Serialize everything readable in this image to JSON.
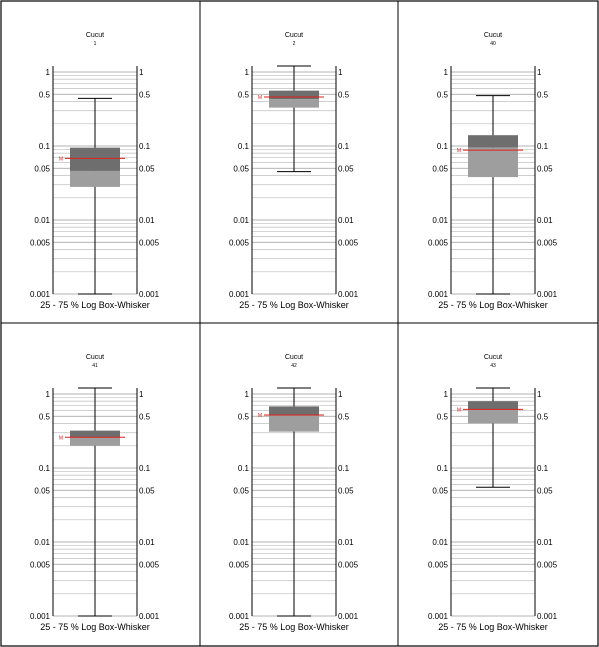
{
  "chart_data": [
    {
      "type": "boxplot",
      "title": "Cucut",
      "subtitle": "1",
      "xlabel": "25 - 75 % Log Box-Whisker",
      "yscale": "log",
      "ylim": [
        0.001,
        1
      ],
      "yticks": [
        "1",
        "0.5",
        "0.1",
        "0.05",
        "0.01",
        "0.005",
        "0.001"
      ],
      "box": {
        "whisker_low": 0.001,
        "q1": 0.028,
        "median": 0.046,
        "q3": 0.095,
        "whisker_high": 0.44,
        "mean": 0.068
      },
      "mean_label": "M"
    },
    {
      "type": "boxplot",
      "title": "Cucut",
      "subtitle": "2",
      "xlabel": "25 - 75 % Log Box-Whisker",
      "yscale": "log",
      "ylim": [
        0.001,
        1
      ],
      "yticks": [
        "1",
        "0.5",
        "0.1",
        "0.05",
        "0.01",
        "0.005",
        "0.001"
      ],
      "box": {
        "whisker_low": 0.045,
        "q1": 0.33,
        "median": 0.43,
        "q3": 0.56,
        "whisker_high": 1.6,
        "mean": 0.46
      },
      "mean_label": "M"
    },
    {
      "type": "boxplot",
      "title": "Cucut",
      "subtitle": "40",
      "xlabel": "25 - 75 % Log Box-Whisker",
      "yscale": "log",
      "ylim": [
        0.001,
        1
      ],
      "yticks": [
        "1",
        "0.5",
        "0.1",
        "0.05",
        "0.01",
        "0.005",
        "0.001"
      ],
      "box": {
        "whisker_low": 0.001,
        "q1": 0.038,
        "median": 0.095,
        "q3": 0.14,
        "whisker_high": 0.48,
        "mean": 0.088
      },
      "mean_label": "M"
    },
    {
      "type": "boxplot",
      "title": "Cucut",
      "subtitle": "41",
      "xlabel": "25 - 75 % Log Box-Whisker",
      "yscale": "log",
      "ylim": [
        0.001,
        1
      ],
      "yticks": [
        "1",
        "0.5",
        "0.1",
        "0.05",
        "0.01",
        "0.005",
        "0.001"
      ],
      "box": {
        "whisker_low": 0.001,
        "q1": 0.2,
        "median": 0.26,
        "q3": 0.32,
        "whisker_high": 1.5,
        "mean": 0.26
      },
      "mean_label": "M"
    },
    {
      "type": "boxplot",
      "title": "Cucut",
      "subtitle": "42",
      "xlabel": "25 - 75 % Log Box-Whisker",
      "yscale": "log",
      "ylim": [
        0.001,
        1
      ],
      "yticks": [
        "1",
        "0.5",
        "0.1",
        "0.05",
        "0.01",
        "0.005",
        "0.001"
      ],
      "box": {
        "whisker_low": 0.001,
        "q1": 0.31,
        "median": 0.52,
        "q3": 0.68,
        "whisker_high": 1.7,
        "mean": 0.52
      },
      "mean_label": "M"
    },
    {
      "type": "boxplot",
      "title": "Cucut",
      "subtitle": "43",
      "xlabel": "25 - 75 % Log Box-Whisker",
      "yscale": "log",
      "ylim": [
        0.001,
        1
      ],
      "yticks": [
        "1",
        "0.5",
        "0.1",
        "0.05",
        "0.01",
        "0.005",
        "0.001"
      ],
      "box": {
        "whisker_low": 0.055,
        "q1": 0.4,
        "median": 0.61,
        "q3": 0.8,
        "whisker_high": 1.8,
        "mean": 0.62
      },
      "mean_label": "M"
    }
  ]
}
